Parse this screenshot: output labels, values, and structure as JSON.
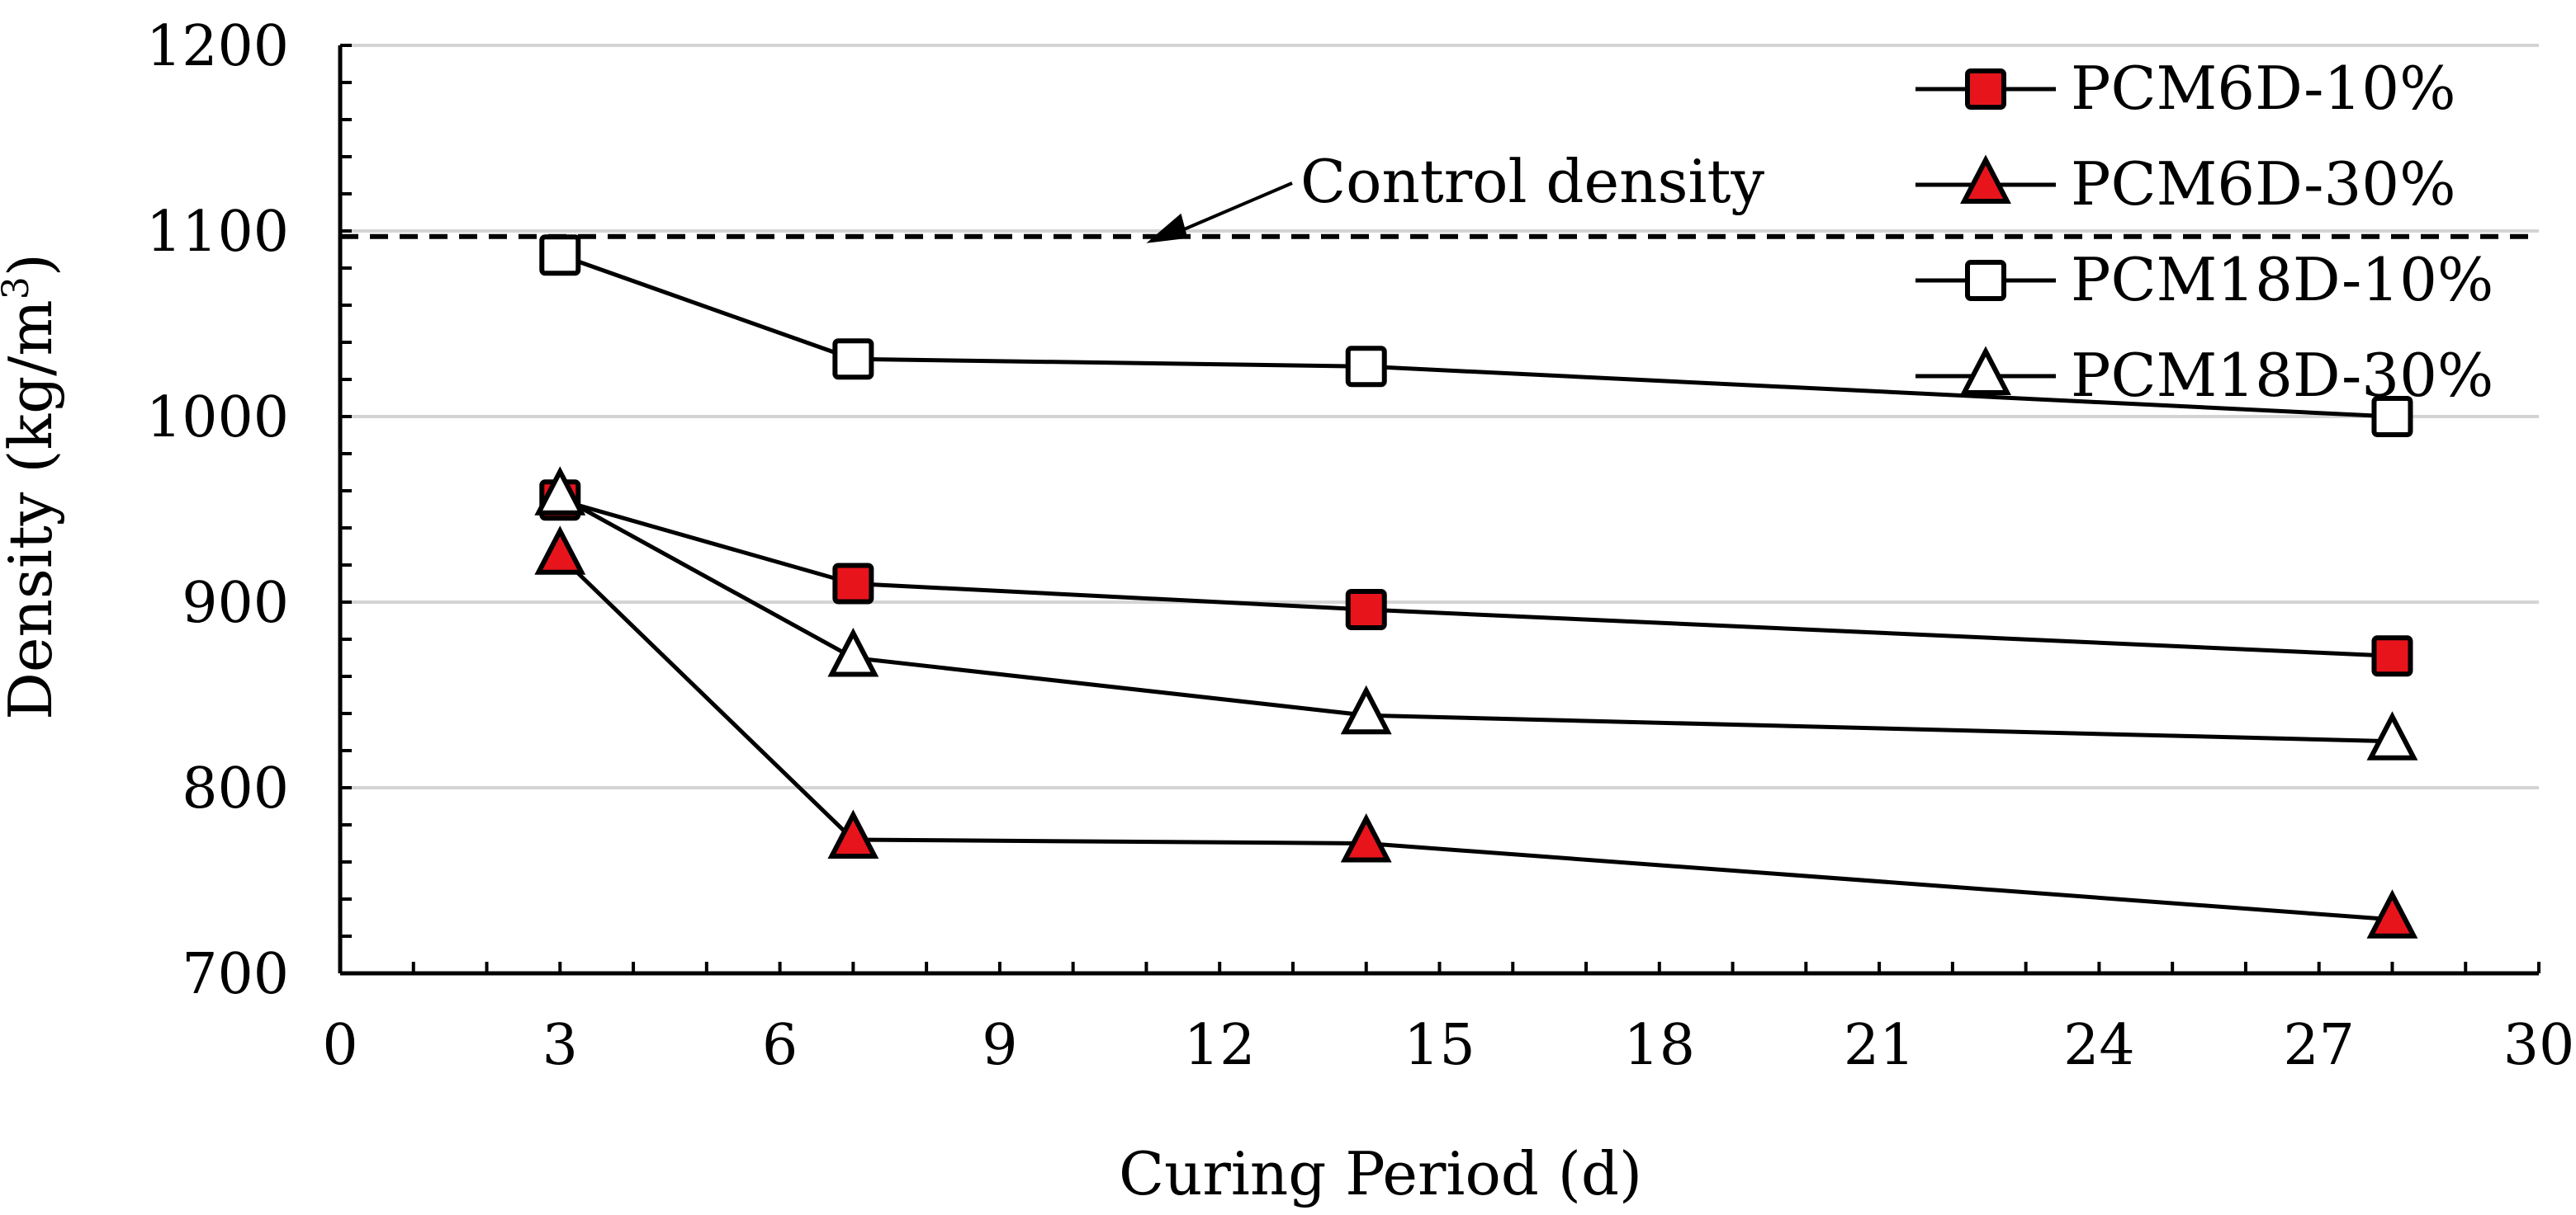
{
  "chart_data": {
    "type": "line",
    "xlabel": "Curing Period (d)",
    "ylabel": {
      "prefix": "Density (kg/m",
      "superscript": "3",
      "suffix": ")"
    },
    "xlim": [
      0,
      30
    ],
    "ylim": [
      700,
      1200
    ],
    "xticks": [
      0,
      3,
      6,
      9,
      12,
      15,
      18,
      21,
      24,
      27,
      30
    ],
    "yticks": [
      700,
      800,
      900,
      1000,
      1100,
      1200
    ],
    "grid": "horizontal",
    "legend_position": "top-right",
    "series": [
      {
        "name": "PCM6D-10%",
        "marker": "square",
        "fill": "#e8141c",
        "x": [
          3,
          7,
          14,
          28
        ],
        "y": [
          955,
          910,
          896,
          871
        ]
      },
      {
        "name": "PCM6D-30%",
        "marker": "triangle",
        "fill": "#e8141c",
        "x": [
          3,
          7,
          14,
          28
        ],
        "y": [
          925,
          772,
          770,
          729
        ]
      },
      {
        "name": "PCM18D-10%",
        "marker": "square",
        "fill": "#ffffff",
        "x": [
          3,
          7,
          14,
          28
        ],
        "y": [
          1087,
          1031,
          1027,
          1000
        ]
      },
      {
        "name": "PCM18D-30%",
        "marker": "triangle",
        "fill": "#ffffff",
        "x": [
          3,
          7,
          14,
          28
        ],
        "y": [
          957,
          870,
          839,
          825
        ]
      }
    ],
    "control_line": {
      "y": 1097,
      "label": "Control density",
      "arrow_x": 11
    }
  }
}
